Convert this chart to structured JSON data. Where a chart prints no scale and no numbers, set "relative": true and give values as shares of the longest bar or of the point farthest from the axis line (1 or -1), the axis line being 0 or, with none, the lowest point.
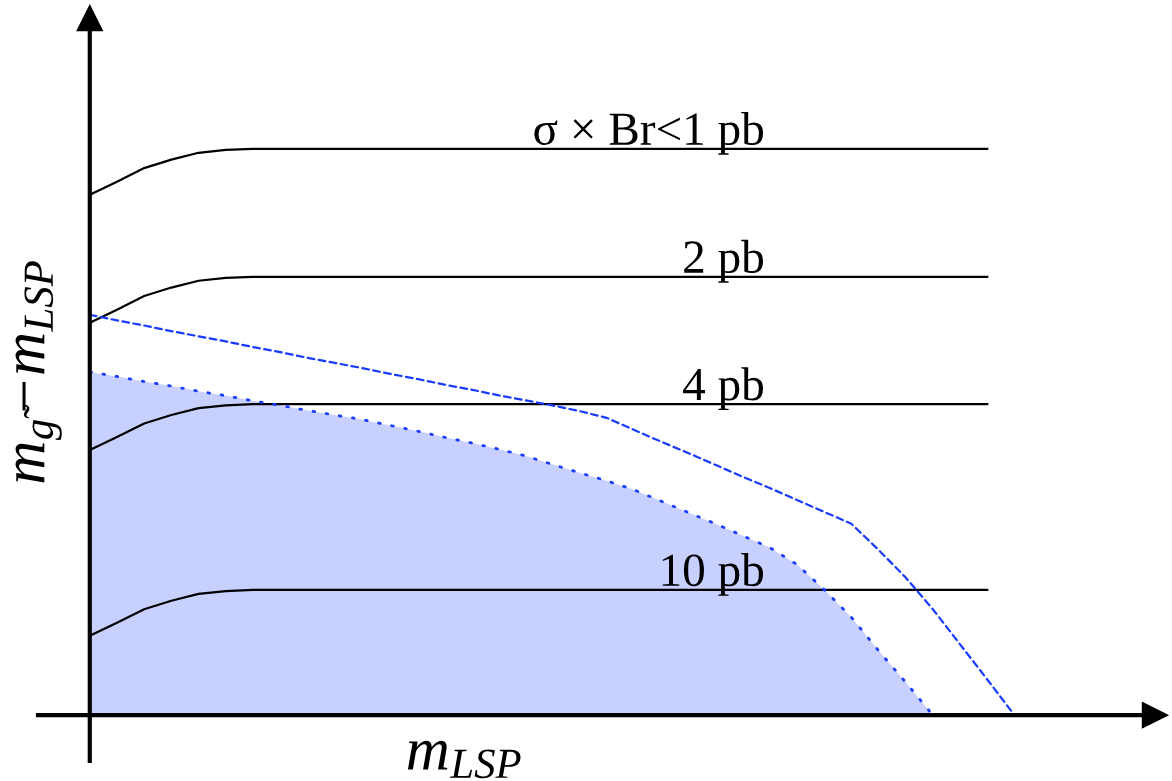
{
  "chart_data": {
    "type": "line",
    "relative": true,
    "line_style": "solid",
    "xlabel": "m$_{LSP}$",
    "ylabel": "m$_{g̃}$−m$_{LSP}$",
    "categories": [
      null,
      null,
      null,
      null,
      null,
      null,
      null,
      null,
      null,
      null,
      null,
      null,
      null,
      null,
      null,
      null,
      null,
      null,
      null,
      null,
      null,
      null,
      null,
      null,
      null,
      null,
      null,
      null,
      null,
      null,
      null,
      null,
      null,
      null,
      null
    ],
    "series": [
      {
        "color": "#000000",
        "values": [
          0.919,
          0.942,
          0.966,
          0.981,
          0.993,
          0.998,
          1.0,
          1.0,
          1.0,
          1.0,
          1.0,
          1.0,
          1.0,
          1.0,
          1.0,
          1.0,
          1.0,
          1.0,
          1.0,
          1.0,
          1.0,
          1.0,
          1.0,
          1.0,
          1.0,
          1.0,
          1.0,
          1.0,
          1.0,
          1.0,
          1.0,
          1.0,
          1.0,
          1.0,
          null
        ]
      },
      {
        "color": "#000000",
        "values": [
          0.693,
          0.716,
          0.74,
          0.755,
          0.767,
          0.772,
          0.774,
          0.774,
          0.774,
          0.774,
          0.774,
          0.774,
          0.774,
          0.774,
          0.774,
          0.774,
          0.774,
          0.774,
          0.774,
          0.774,
          0.774,
          0.774,
          0.774,
          0.774,
          0.774,
          0.774,
          0.774,
          0.774,
          0.774,
          0.774,
          0.774,
          0.774,
          0.774,
          0.774,
          null
        ]
      },
      {
        "color": "#000000",
        "values": [
          0.468,
          0.491,
          0.515,
          0.53,
          0.542,
          0.547,
          0.549,
          0.549,
          0.549,
          0.549,
          0.549,
          0.549,
          0.549,
          0.549,
          0.549,
          0.549,
          0.549,
          0.549,
          0.549,
          0.549,
          0.549,
          0.549,
          0.549,
          0.549,
          0.549,
          0.549,
          0.549,
          0.549,
          0.549,
          0.549,
          0.549,
          0.549,
          0.549,
          0.549,
          null
        ]
      },
      {
        "color": "#000000",
        "values": [
          0.14,
          0.163,
          0.187,
          0.202,
          0.214,
          0.219,
          0.221,
          0.221,
          0.221,
          0.221,
          0.221,
          0.221,
          0.221,
          0.221,
          0.221,
          0.221,
          0.221,
          0.221,
          0.221,
          0.221,
          0.221,
          0.221,
          0.221,
          0.221,
          0.221,
          0.221,
          0.221,
          0.221,
          0.221,
          0.221,
          0.221,
          0.221,
          0.221,
          0.221,
          null
        ]
      },
      {
        "type": "area",
        "color": "#1a3cff",
        "line_style": "dotted",
        "values": [
          0.606,
          0.598,
          0.589,
          0.581,
          0.572,
          0.564,
          0.555,
          0.547,
          0.538,
          0.53,
          0.522,
          0.512,
          0.502,
          0.491,
          0.481,
          0.47,
          0.458,
          0.443,
          0.428,
          0.414,
          0.398,
          0.378,
          0.358,
          0.338,
          0.317,
          0.296,
          0.266,
          0.222,
          0.173,
          0.114,
          0.058,
          0.0,
          null,
          null,
          null
        ]
      },
      {
        "color": "#1a3cff",
        "line_style": "dashed",
        "values": [
          0.707,
          0.697,
          0.688,
          0.678,
          0.669,
          0.66,
          0.65,
          0.641,
          0.631,
          0.622,
          0.613,
          0.603,
          0.594,
          0.584,
          0.575,
          0.565,
          0.556,
          0.547,
          0.537,
          0.525,
          0.504,
          0.483,
          0.463,
          0.442,
          0.421,
          0.401,
          0.38,
          0.359,
          0.338,
          0.292,
          0.243,
          0.187,
          0.125,
          0.063,
          0.0
        ]
      }
    ],
    "annotations": [
      {
        "text": "σ × Br<1 pb",
        "y": 1.0
      },
      {
        "text": "2 pb",
        "y": 0.774
      },
      {
        "text": "4 pb",
        "y": 0.549
      },
      {
        "text": "10 pb",
        "y": 0.221
      }
    ]
  }
}
